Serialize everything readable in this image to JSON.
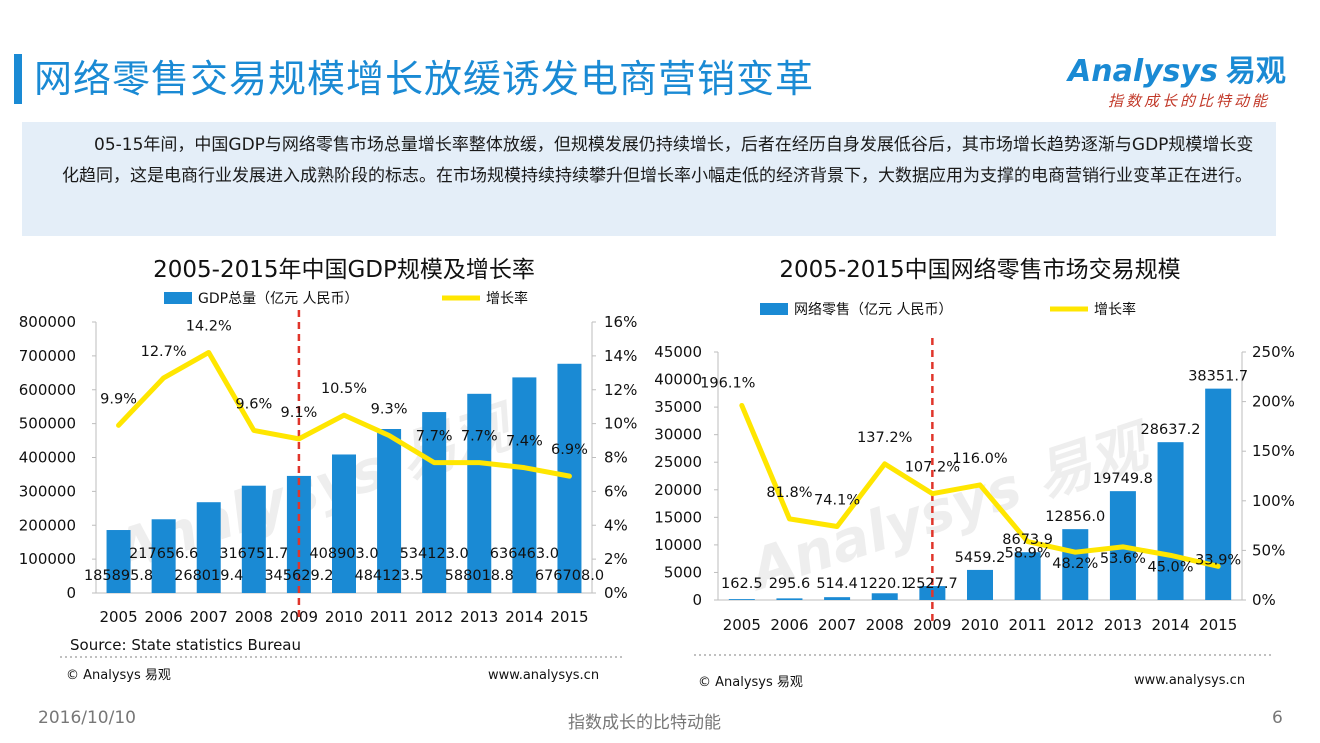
{
  "header": {
    "title": "网络零售交易规模增长放缓诱发电商营销变革",
    "logo_text": "Analysys",
    "logo_cn": "易观",
    "logo_slogan": "指数成长的比特动能"
  },
  "summary": {
    "text": "05-15年间，中国GDP与网络零售市场总量增长率整体放缓，但规模发展仍持续增长，后者在经历自身发展低谷后，其市场增长趋势逐渐与GDP规模增长变化趋同，这是电商行业发展进入成熟阶段的标志。在市场规模持续持续攀升但增长率小幅走低的经济背景下，大数据应用为支撑的电商营销行业变革正在进行。"
  },
  "colors": {
    "bar": "#1a8ad4",
    "line": "#ffe600",
    "marker": "#e0352b",
    "title": "#1a8ad4"
  },
  "chart_data": [
    {
      "type": "bar",
      "title": "2005-2015年中国GDP规模及增长率",
      "categories": [
        "2005",
        "2006",
        "2007",
        "2008",
        "2009",
        "2010",
        "2011",
        "2012",
        "2013",
        "2014",
        "2015"
      ],
      "series": [
        {
          "name": "GDP总量（亿元 人民币）",
          "type": "bar",
          "values": [
            185895.8,
            217656.6,
            268019.4,
            316751.7,
            345629.2,
            408903.0,
            484123.5,
            534123.0,
            588018.8,
            636463.0,
            676708.0
          ],
          "labels": [
            "185895.8",
            "217656.6",
            "268019.4",
            "316751.7",
            "345629.2",
            "408903.0",
            "484123.5",
            "534123.0",
            "588018.8",
            "636463.0",
            "676708.0"
          ]
        },
        {
          "name": "增长率",
          "type": "line",
          "values": [
            9.9,
            12.7,
            14.2,
            9.6,
            9.1,
            10.5,
            9.3,
            7.7,
            7.7,
            7.4,
            6.9
          ],
          "labels": [
            "9.9%",
            "12.7%",
            "14.2%",
            "9.6%",
            "9.1%",
            "10.5%",
            "9.3%",
            "7.7%",
            "7.7%",
            "7.4%",
            "6.9%"
          ]
        }
      ],
      "left_axis": {
        "ticks": [
          "0",
          "100000",
          "200000",
          "300000",
          "400000",
          "500000",
          "600000",
          "700000",
          "800000"
        ],
        "ylim": [
          0,
          800000
        ]
      },
      "right_axis": {
        "ticks": [
          "0%",
          "2%",
          "4%",
          "6%",
          "8%",
          "10%",
          "12%",
          "14%",
          "16%"
        ],
        "ylim": [
          0,
          16
        ]
      },
      "marker_category": "2009",
      "source": "Source: State statistics Bureau",
      "copyright": "© Analysys 易观",
      "url": "www.analysys.cn"
    },
    {
      "type": "bar",
      "title": "2005-2015中国网络零售市场交易规模",
      "categories": [
        "2005",
        "2006",
        "2007",
        "2008",
        "2009",
        "2010",
        "2011",
        "2012",
        "2013",
        "2014",
        "2015"
      ],
      "series": [
        {
          "name": "网络零售（亿元 人民币）",
          "type": "bar",
          "values": [
            162.5,
            295.6,
            514.4,
            1220.1,
            2527.7,
            5459.2,
            8673.9,
            12856.0,
            19749.8,
            28637.2,
            38351.7
          ],
          "labels": [
            "162.5",
            "295.6",
            "514.4",
            "1220.1",
            "2527.7",
            "5459.2",
            "8673.9",
            "12856.0",
            "19749.8",
            "28637.2",
            "38351.7"
          ]
        },
        {
          "name": "增长率",
          "type": "line",
          "values": [
            196.1,
            81.8,
            74.1,
            137.2,
            107.2,
            116.0,
            58.9,
            48.2,
            53.6,
            45.0,
            33.9
          ],
          "labels": [
            "196.1%",
            "81.8%",
            "74.1%",
            "137.2%",
            "107.2%",
            "116.0%",
            "58.9%",
            "48.2%",
            "53.6%",
            "45.0%",
            "33.9%"
          ]
        }
      ],
      "left_axis": {
        "ticks": [
          "0",
          "5000",
          "10000",
          "15000",
          "20000",
          "25000",
          "30000",
          "35000",
          "40000",
          "45000"
        ],
        "ylim": [
          0,
          45000
        ]
      },
      "right_axis": {
        "ticks": [
          "0%",
          "50%",
          "100%",
          "150%",
          "200%",
          "250%"
        ],
        "ylim": [
          0,
          250
        ]
      },
      "marker_category": "2009",
      "copyright": "© Analysys 易观",
      "url": "www.analysys.cn"
    }
  ],
  "footer": {
    "date": "2016/10/10",
    "slogan": "指数成长的比特动能",
    "page": "6"
  }
}
